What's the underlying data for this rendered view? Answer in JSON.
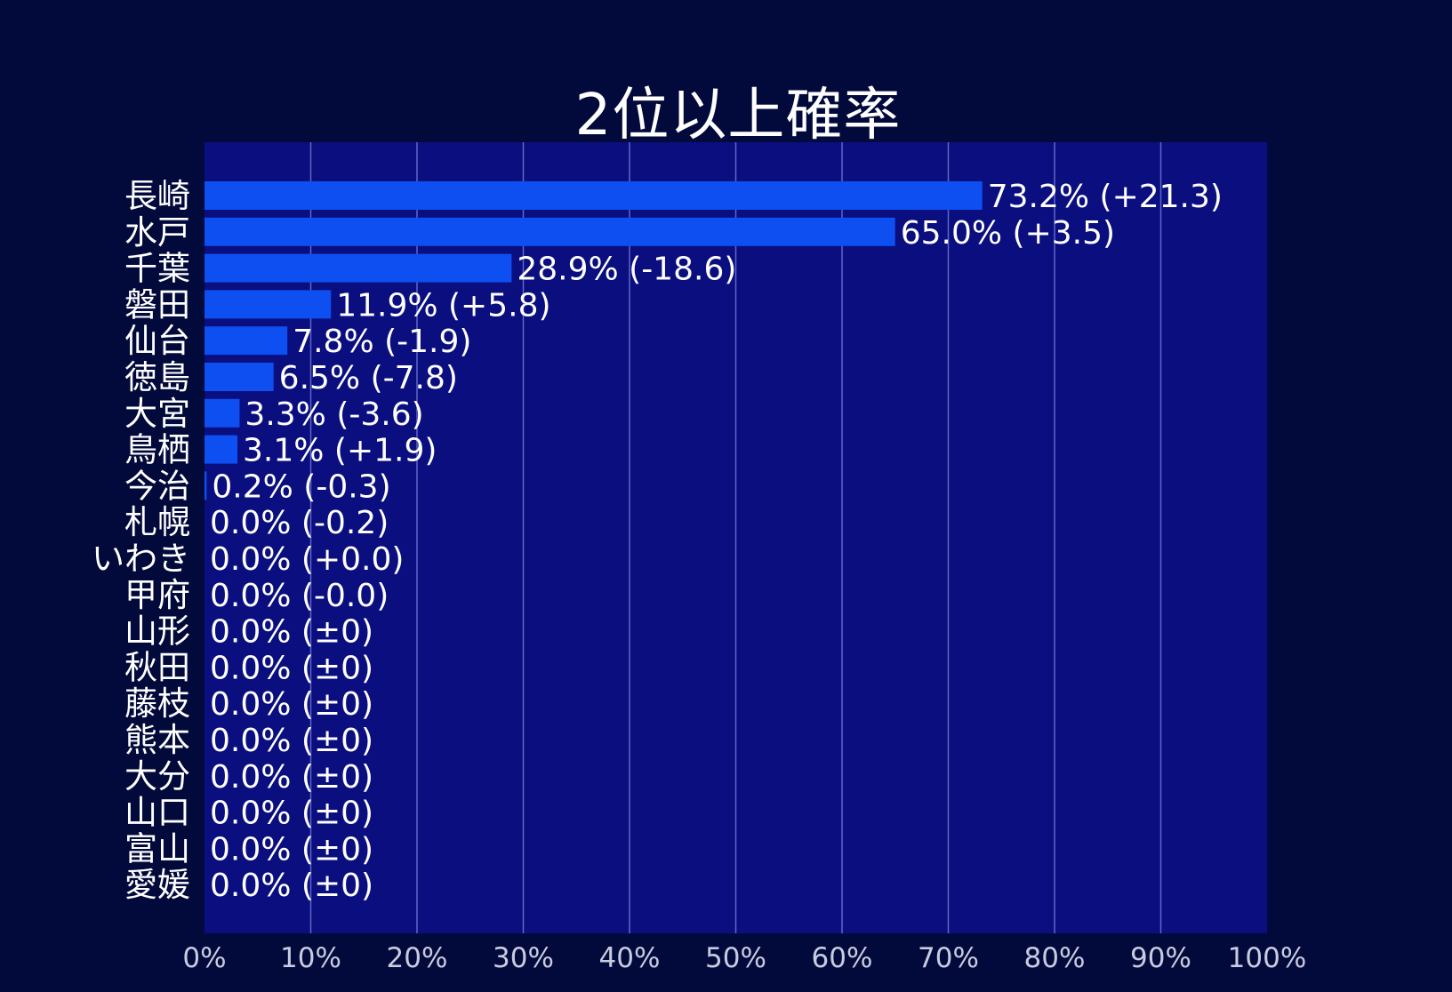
{
  "chart_data": {
    "type": "bar",
    "orientation": "horizontal",
    "title": "2位以上確率",
    "xlabel": "",
    "ylabel": "",
    "xlim": [
      0,
      100
    ],
    "grid": true,
    "categories": [
      "長崎",
      "水戸",
      "千葉",
      "磐田",
      "仙台",
      "徳島",
      "大宮",
      "鳥栖",
      "今治",
      "札幌",
      "いわき",
      "甲府",
      "山形",
      "秋田",
      "藤枝",
      "熊本",
      "大分",
      "山口",
      "富山",
      "愛媛"
    ],
    "values": [
      73.2,
      65.0,
      28.9,
      11.9,
      7.8,
      6.5,
      3.3,
      3.1,
      0.2,
      0.0,
      0.0,
      0.0,
      0.0,
      0.0,
      0.0,
      0.0,
      0.0,
      0.0,
      0.0,
      0.0
    ],
    "data_labels": [
      "73.2% (+21.3)",
      "65.0% (+3.5)",
      "28.9% (-18.6)",
      "11.9% (+5.8)",
      "7.8% (-1.9)",
      "6.5% (-7.8)",
      "3.3% (-3.6)",
      "3.1% (+1.9)",
      "0.2% (-0.3)",
      "0.0% (-0.2)",
      "0.0% (+0.0)",
      "0.0% (-0.0)",
      "0.0% (±0)",
      "0.0% (±0)",
      "0.0% (±0)",
      "0.0% (±0)",
      "0.0% (±0)",
      "0.0% (±0)",
      "0.0% (±0)",
      "0.0% (±0)"
    ],
    "x_ticks": [
      "0%",
      "10%",
      "20%",
      "30%",
      "40%",
      "50%",
      "60%",
      "70%",
      "80%",
      "90%",
      "100%"
    ],
    "colors": {
      "background": "#020a3b",
      "plot_area": "#0a0e7f",
      "bar": "#0d4ff0",
      "grid": "#5e67c8",
      "text": "#ffffff",
      "tick_text": "#c9cbe0"
    }
  }
}
